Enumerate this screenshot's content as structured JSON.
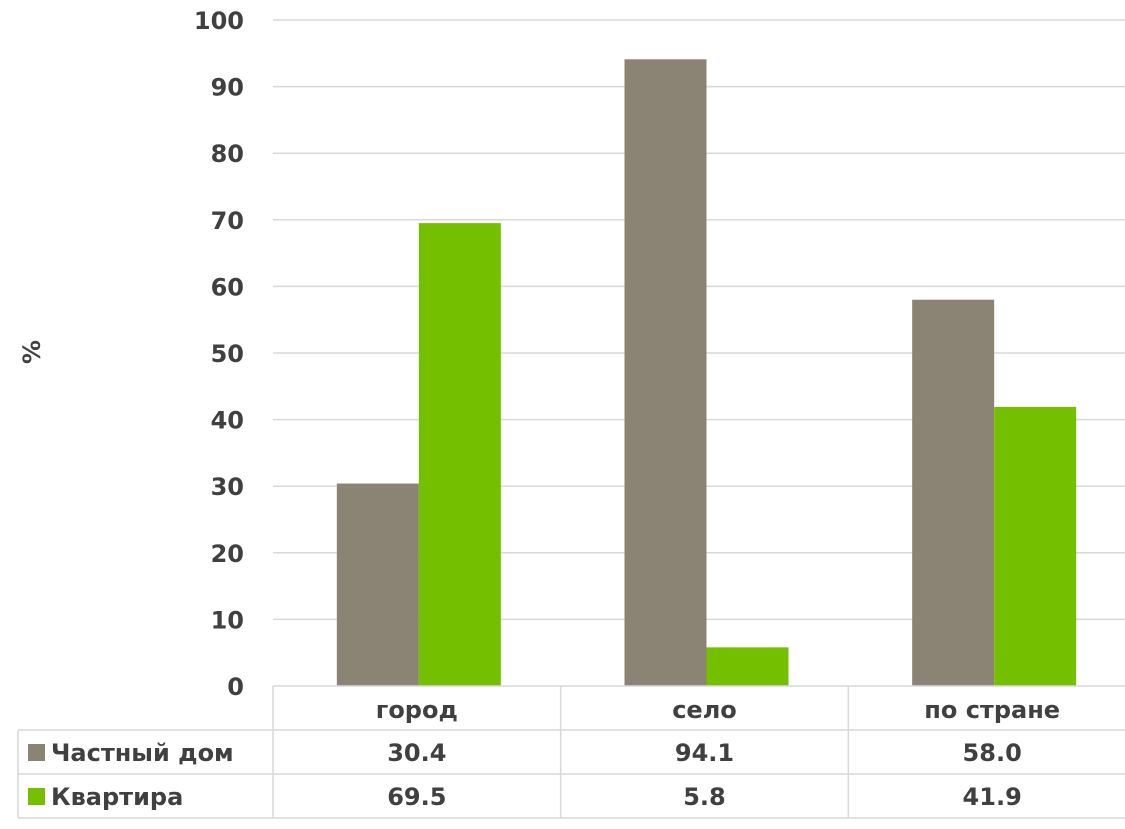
{
  "chart_data": {
    "type": "bar",
    "title": "",
    "xlabel": "",
    "ylabel": "%",
    "ylim": [
      0,
      100
    ],
    "yticks": [
      0,
      10,
      20,
      30,
      40,
      50,
      60,
      70,
      80,
      90,
      100
    ],
    "grid": true,
    "legend_placement": "data table below plot",
    "categories": [
      "город",
      "село",
      "по стране"
    ],
    "series": [
      {
        "name": "Частный дом",
        "values": [
          30.4,
          94.1,
          58.0
        ],
        "labels": [
          "30.4",
          "94.1",
          "58.0"
        ],
        "color": "#8b8374"
      },
      {
        "name": "Квартира",
        "values": [
          69.5,
          5.8,
          41.9
        ],
        "labels": [
          "69.5",
          "5.8",
          "41.9"
        ],
        "color": "#74bf00"
      }
    ]
  }
}
